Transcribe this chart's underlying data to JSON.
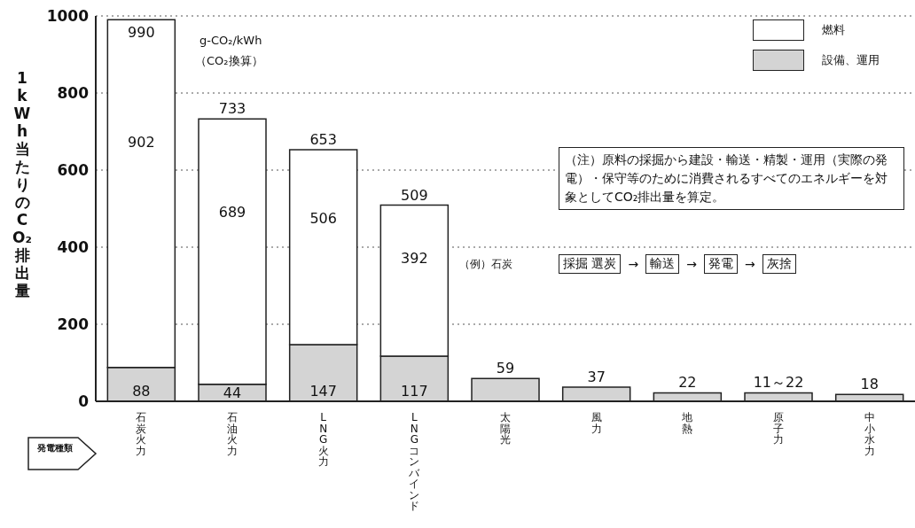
{
  "chart_data": {
    "type": "bar",
    "stacked": true,
    "categories": [
      "石炭火力",
      "石油火力",
      "LNG火力",
      "LNGコンバインド",
      "太陽光",
      "風力",
      "地熱",
      "原子力",
      "中小水力"
    ],
    "series": [
      {
        "name": "設備、運用",
        "color": "#d4d4d4",
        "values": [
          88,
          44,
          147,
          117,
          59,
          37,
          22,
          22,
          18
        ],
        "value_labels": [
          "88",
          "44",
          "147",
          "117",
          null,
          null,
          null,
          null,
          null
        ]
      },
      {
        "name": "燃料",
        "color": "#ffffff",
        "values": [
          902,
          689,
          506,
          392,
          null,
          null,
          null,
          null,
          null
        ],
        "value_labels": [
          "902",
          "689",
          "506",
          "392",
          null,
          null,
          null,
          null,
          null
        ]
      }
    ],
    "totals": [
      "990",
      "733",
      "653",
      "509",
      "59",
      "37",
      "22",
      "11～22",
      "18"
    ],
    "ylabel": "1kWh当たりのCO₂排出量",
    "ylim": [
      0,
      1000
    ],
    "yticks": [
      0,
      200,
      400,
      600,
      800,
      1000
    ],
    "grid": "y",
    "legend": "top right",
    "annotations": [
      "g-CO₂/kWh",
      "（CO₂換算）",
      "（注）原料の採掘から建設・輸送・精製・運用（実際の発電）・保守等のために消費されるすべてのエネルギーを対象としてCO₂排出量を算定。",
      "（例）石炭",
      "採掘 選炭",
      "→",
      "輸送",
      "→",
      "発電",
      "→",
      "灰捨",
      "発電種類"
    ]
  }
}
